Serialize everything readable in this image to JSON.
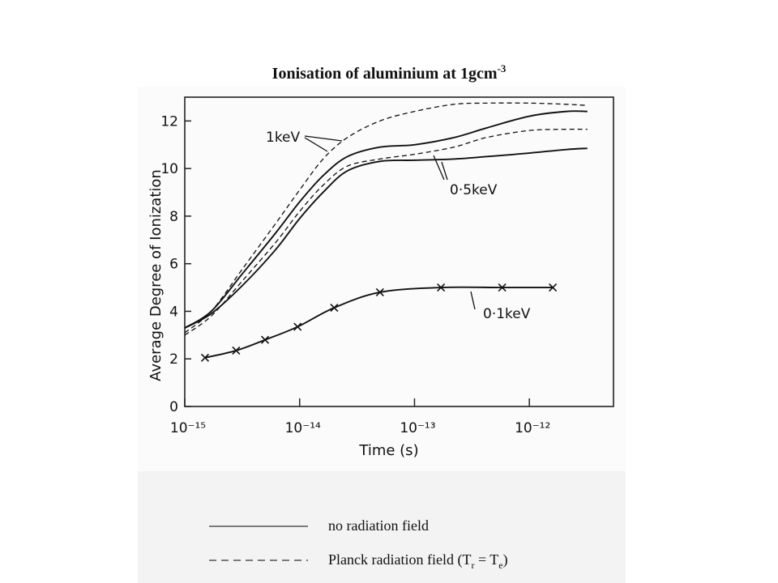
{
  "chart_data": {
    "type": "line",
    "title": {
      "text": "Ionisation of aluminium at 1gcm",
      "superscript": "-3"
    },
    "x_label": "Time (s)",
    "y_label": "Average Degree of Ionization",
    "x_scale": "log",
    "xlim": [
      1e-15,
      5.4e-12
    ],
    "ylim": [
      0,
      13
    ],
    "xticks": [
      {
        "value": 1e-15,
        "label": "10⁻¹⁵"
      },
      {
        "value": 1e-14,
        "label": "10⁻¹⁴"
      },
      {
        "value": 1e-13,
        "label": "10⁻¹³"
      },
      {
        "value": 1e-12,
        "label": "10⁻¹²"
      }
    ],
    "yticks": [
      0,
      2,
      4,
      6,
      8,
      10,
      12
    ],
    "x": [
      1e-15,
      1.7e-15,
      3.2e-15,
      6.2e-15,
      1e-14,
      1.6e-14,
      2.6e-14,
      5e-14,
      1e-13,
      2.2e-13,
      4.2e-13,
      1e-12,
      2.1e-12,
      3.2e-12
    ],
    "series": [
      {
        "color": "#111111",
        "dash": false,
        "values": [
          3.3,
          4.0,
          5.6,
          7.3,
          8.6,
          9.7,
          10.5,
          10.9,
          11.0,
          11.3,
          11.7,
          12.2,
          12.4,
          12.4
        ]
      },
      {
        "color": "#111111",
        "dash": true,
        "values": [
          3.1,
          4.0,
          5.8,
          7.7,
          9.1,
          10.4,
          11.3,
          12.0,
          12.4,
          12.7,
          12.75,
          12.75,
          12.7,
          12.65
        ]
      },
      {
        "color": "#111111",
        "dash": false,
        "values": [
          3.3,
          3.9,
          5.1,
          6.6,
          7.9,
          9.0,
          9.9,
          10.3,
          10.35,
          10.4,
          10.5,
          10.65,
          10.8,
          10.85
        ]
      },
      {
        "color": "#111111",
        "dash": true,
        "values": [
          3.0,
          3.8,
          5.3,
          6.9,
          8.2,
          9.3,
          10.1,
          10.4,
          10.6,
          10.9,
          11.3,
          11.6,
          11.65,
          11.65
        ]
      },
      {
        "color": "#111111",
        "dash": false,
        "marker": "x",
        "x": [
          1.5e-15,
          2.8e-15,
          5e-15,
          9.6e-15,
          2e-14,
          5e-14,
          1.7e-13,
          5.8e-13,
          1.6e-12
        ],
        "values": [
          2.05,
          2.35,
          2.8,
          3.35,
          4.15,
          4.8,
          5.0,
          5.0,
          5.0
        ]
      }
    ],
    "annotations": [
      "1keV",
      "0·5keV",
      "0·1keV"
    ],
    "legend": [
      {
        "dash": false,
        "text": [
          "no radiation field"
        ]
      },
      {
        "dash": true,
        "text": [
          "Planck radiation field (T",
          "r",
          " = T",
          "e",
          ")"
        ]
      }
    ]
  }
}
